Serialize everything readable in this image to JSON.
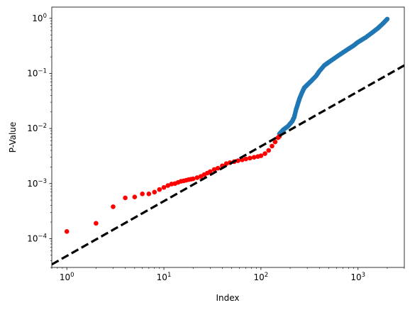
{
  "chart_data": {
    "type": "scatter",
    "xlabel": "Index",
    "ylabel": "P-Value",
    "x_scale": "log",
    "y_scale": "log",
    "xlim": [
      0.7,
      3000
    ],
    "ylim": [
      3e-05,
      1.6
    ],
    "grid": false,
    "x_ticks": [
      {
        "value": 1,
        "base": "10",
        "exp": "0"
      },
      {
        "value": 10,
        "base": "10",
        "exp": "1"
      },
      {
        "value": 100,
        "base": "10",
        "exp": "2"
      },
      {
        "value": 1000,
        "base": "10",
        "exp": "3"
      }
    ],
    "y_ticks": [
      {
        "value": 0.0001,
        "base": "10",
        "exp": "−4"
      },
      {
        "value": 0.001,
        "base": "10",
        "exp": "−3"
      },
      {
        "value": 0.01,
        "base": "10",
        "exp": "−2"
      },
      {
        "value": 0.1,
        "base": "10",
        "exp": "−1"
      },
      {
        "value": 1,
        "base": "10",
        "exp": "0"
      }
    ],
    "significant_points": {
      "color": "#ff0000",
      "points": [
        [
          1,
          0.000135
        ],
        [
          2,
          0.00019
        ],
        [
          3,
          0.00038
        ],
        [
          4,
          0.00055
        ],
        [
          5,
          0.00057
        ],
        [
          6,
          0.00065
        ],
        [
          7,
          0.00065
        ],
        [
          8,
          0.0007
        ],
        [
          9,
          0.00078
        ],
        [
          10,
          0.00085
        ],
        [
          11,
          0.00092
        ],
        [
          12,
          0.00098
        ],
        [
          13,
          0.001
        ],
        [
          14,
          0.00105
        ],
        [
          15,
          0.0011
        ],
        [
          16,
          0.00112
        ],
        [
          17,
          0.00115
        ],
        [
          18,
          0.00118
        ],
        [
          19,
          0.0012
        ],
        [
          20,
          0.00122
        ],
        [
          22,
          0.00128
        ],
        [
          24,
          0.00135
        ],
        [
          26,
          0.00145
        ],
        [
          28,
          0.00155
        ],
        [
          30,
          0.00165
        ],
        [
          33,
          0.0018
        ],
        [
          36,
          0.0019
        ],
        [
          40,
          0.0021
        ],
        [
          44,
          0.0023
        ],
        [
          48,
          0.0024
        ],
        [
          53,
          0.0025
        ],
        [
          58,
          0.0026
        ],
        [
          64,
          0.0027
        ],
        [
          70,
          0.0028
        ],
        [
          77,
          0.0029
        ],
        [
          85,
          0.003
        ],
        [
          93,
          0.0031
        ],
        [
          100,
          0.0032
        ],
        [
          110,
          0.0035
        ],
        [
          120,
          0.004
        ],
        [
          130,
          0.0048
        ],
        [
          140,
          0.0057
        ],
        [
          150,
          0.0068
        ],
        [
          155,
          0.0072
        ]
      ]
    },
    "other_points": {
      "color": "#1f77b4",
      "curve": [
        [
          155,
          0.008
        ],
        [
          170,
          0.0095
        ],
        [
          190,
          0.011
        ],
        [
          210,
          0.0135
        ],
        [
          220,
          0.016
        ],
        [
          230,
          0.022
        ],
        [
          240,
          0.028
        ],
        [
          250,
          0.035
        ],
        [
          265,
          0.045
        ],
        [
          280,
          0.055
        ],
        [
          300,
          0.062
        ],
        [
          330,
          0.073
        ],
        [
          370,
          0.09
        ],
        [
          400,
          0.11
        ],
        [
          450,
          0.14
        ],
        [
          500,
          0.16
        ],
        [
          600,
          0.2
        ],
        [
          700,
          0.24
        ],
        [
          800,
          0.28
        ],
        [
          900,
          0.32
        ],
        [
          1000,
          0.37
        ],
        [
          1200,
          0.45
        ],
        [
          1400,
          0.55
        ],
        [
          1600,
          0.66
        ],
        [
          1800,
          0.8
        ],
        [
          2000,
          0.97
        ]
      ]
    },
    "reference_line": {
      "color": "#000000",
      "style": "dashed",
      "slope_loglog": 1,
      "points": [
        [
          0.7,
          3.4e-05
        ],
        [
          3000,
          0.14
        ]
      ]
    }
  }
}
